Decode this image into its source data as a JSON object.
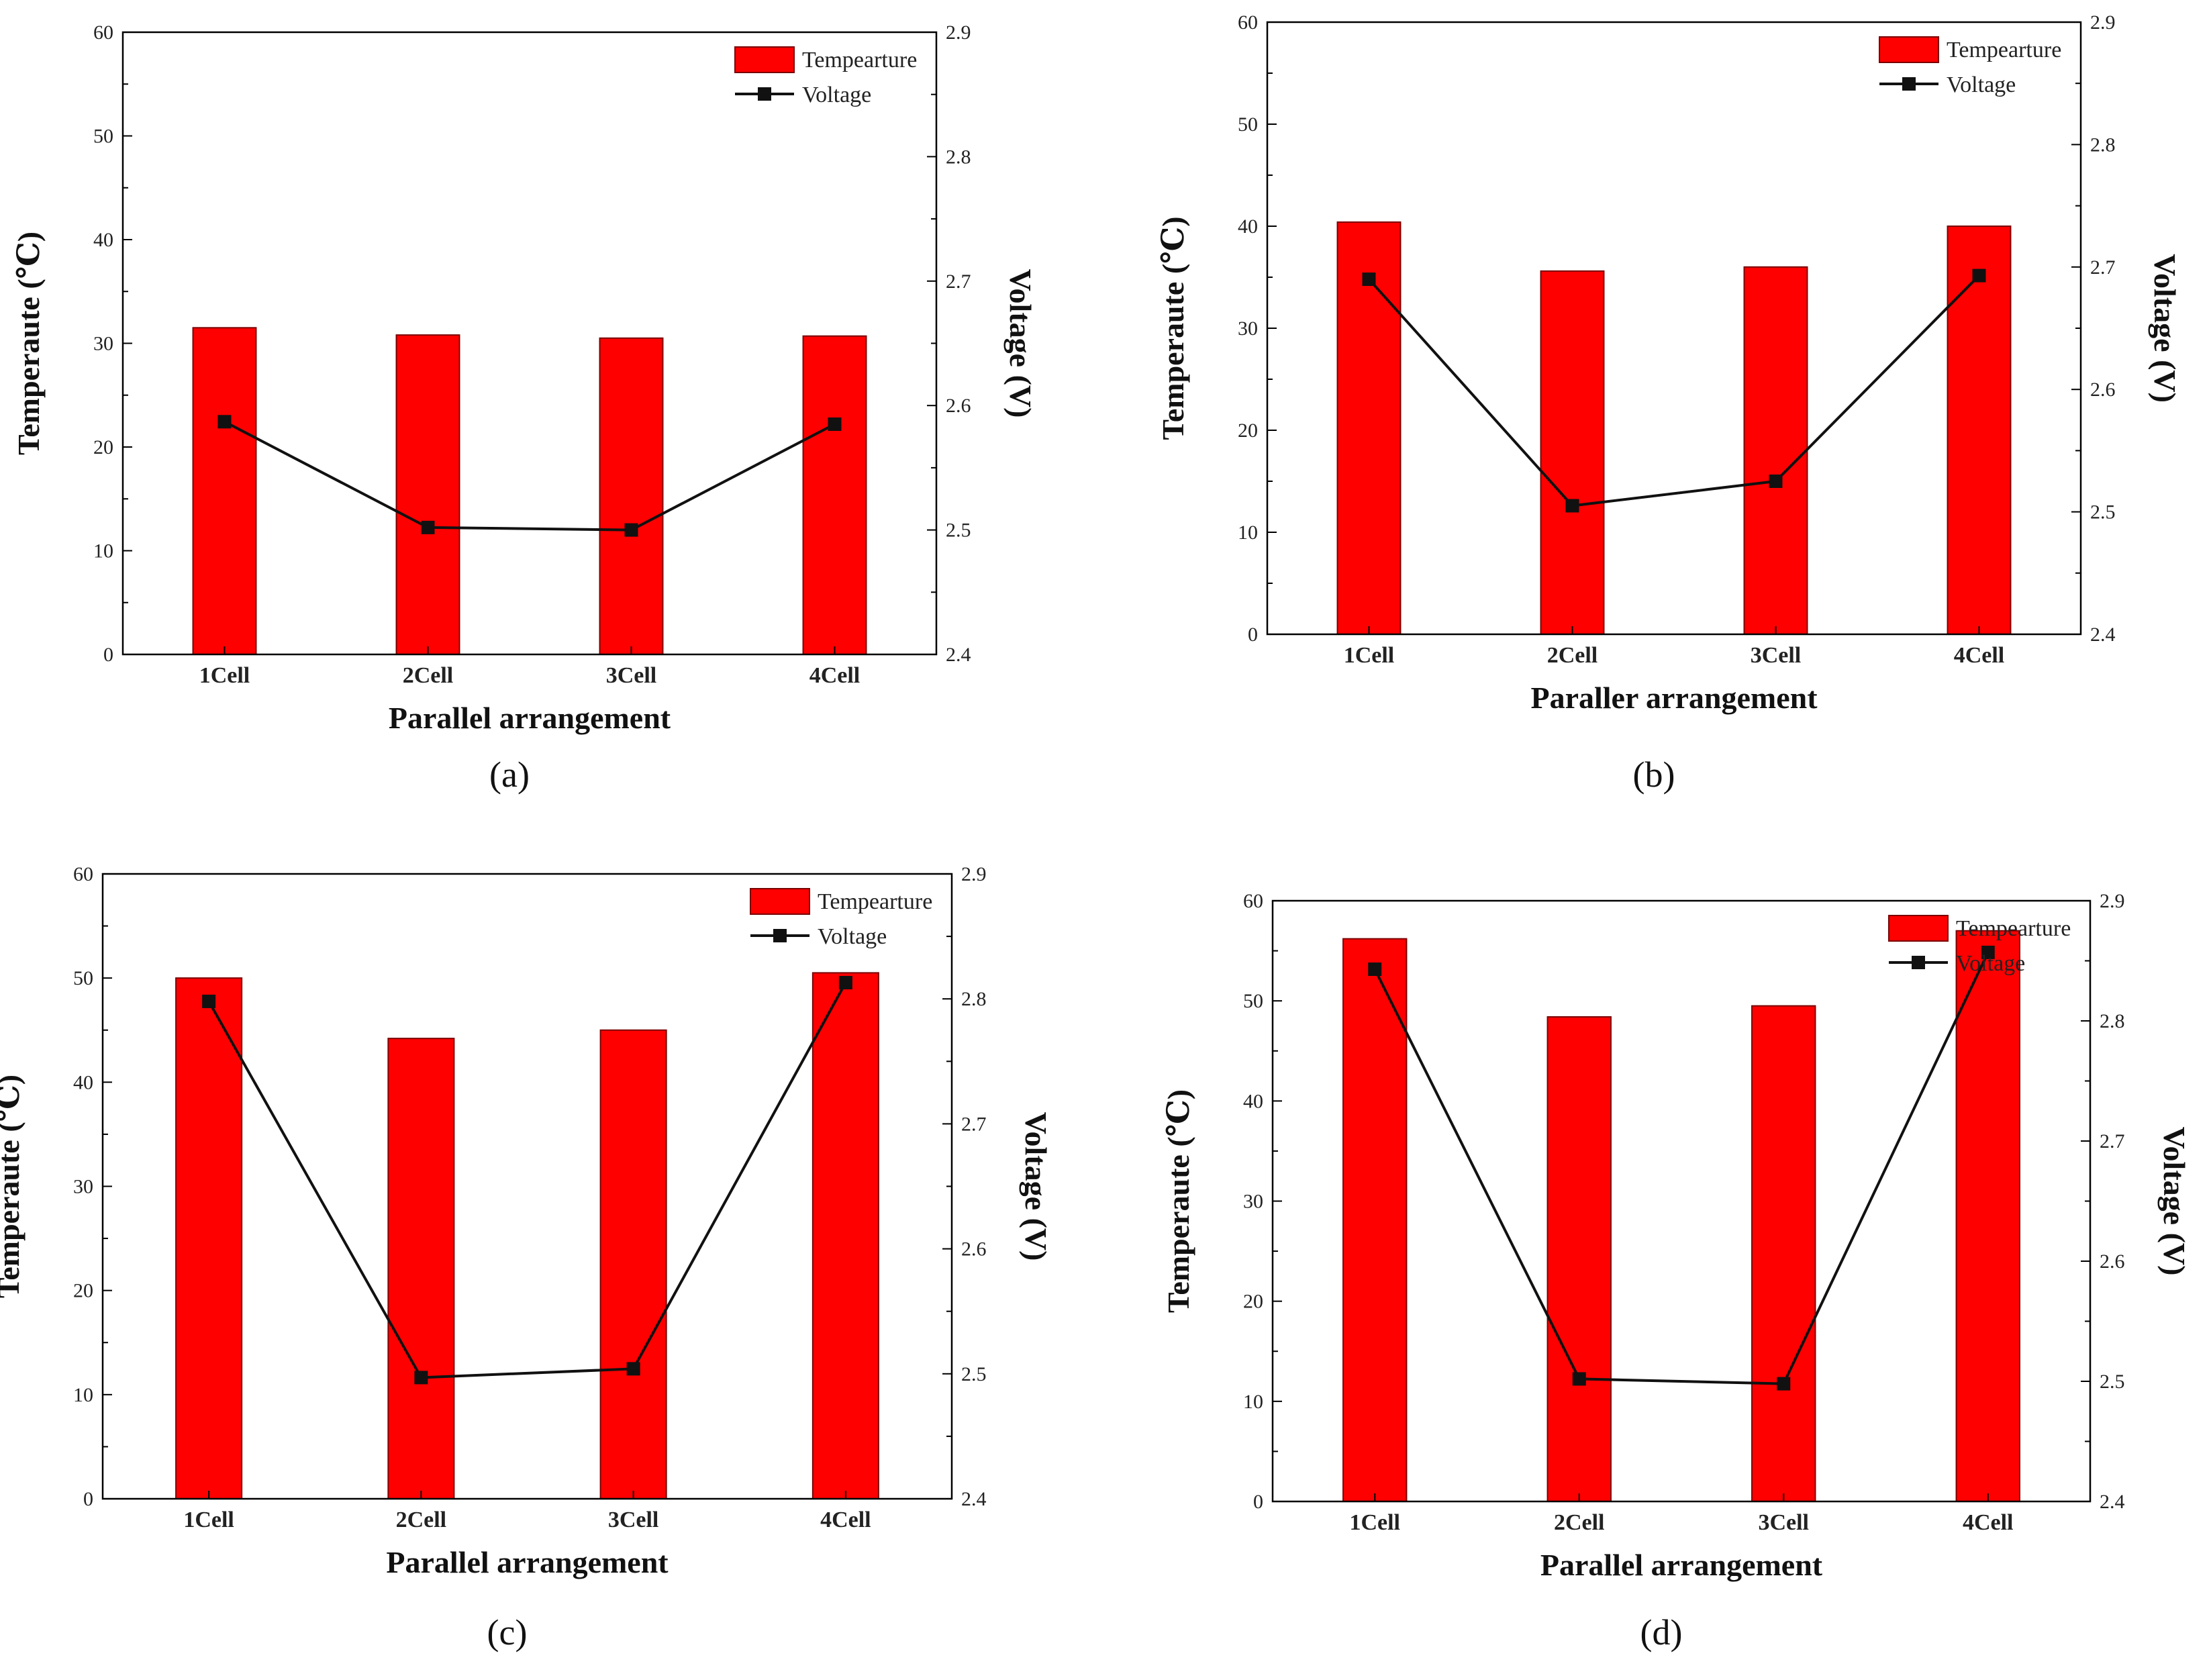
{
  "colors": {
    "bar": "#ff0000",
    "bar_stroke": "#7a0000",
    "line": "#111111",
    "axis": "#000000"
  },
  "chart_data": [
    {
      "type": "bar",
      "panel_label": "(a)",
      "categories": [
        "1Cell",
        "2Cell",
        "3Cell",
        "4Cell"
      ],
      "series": [
        {
          "name": "Tempearture",
          "type": "bar",
          "axis": "left",
          "values": [
            31.5,
            30.8,
            30.5,
            30.7
          ]
        },
        {
          "name": "Voltage",
          "type": "line",
          "axis": "right",
          "values": [
            2.587,
            2.502,
            2.5,
            2.585
          ]
        }
      ],
      "xlabel": "Parallel arrangement",
      "ylabel": "Temperaute (℃)",
      "y2label": "Voltage (V)",
      "ylim": [
        0,
        60
      ],
      "yticks": [
        0,
        10,
        20,
        30,
        40,
        50,
        60
      ],
      "y2lim": [
        2.4,
        2.9
      ],
      "y2ticks": [
        2.4,
        2.5,
        2.6,
        2.7,
        2.8,
        2.9
      ],
      "legend": "top-right"
    },
    {
      "type": "bar",
      "panel_label": "(b)",
      "categories": [
        "1Cell",
        "2Cell",
        "3Cell",
        "4Cell"
      ],
      "series": [
        {
          "name": "Tempearture",
          "type": "bar",
          "axis": "left",
          "values": [
            40.4,
            35.6,
            36.0,
            40.0
          ]
        },
        {
          "name": "Voltage",
          "type": "line",
          "axis": "right",
          "values": [
            2.69,
            2.505,
            2.525,
            2.693
          ]
        }
      ],
      "xlabel": "Paraller arrangement",
      "ylabel": "Temperaute (℃)",
      "y2label": "Voltage (V)",
      "ylim": [
        0,
        60
      ],
      "yticks": [
        0,
        10,
        20,
        30,
        40,
        50,
        60
      ],
      "y2lim": [
        2.4,
        2.9
      ],
      "y2ticks": [
        2.4,
        2.5,
        2.6,
        2.7,
        2.8,
        2.9
      ],
      "legend": "top-right"
    },
    {
      "type": "bar",
      "panel_label": "(c)",
      "categories": [
        "1Cell",
        "2Cell",
        "3Cell",
        "4Cell"
      ],
      "series": [
        {
          "name": "Tempearture",
          "type": "bar",
          "axis": "left",
          "values": [
            50.0,
            44.2,
            45.0,
            50.5
          ]
        },
        {
          "name": "Voltage",
          "type": "line",
          "axis": "right",
          "values": [
            2.798,
            2.497,
            2.504,
            2.813
          ]
        }
      ],
      "xlabel": "Parallel arrangement",
      "ylabel": "Temperaute (℃)",
      "y2label": "Voltage (V)",
      "ylim": [
        0,
        60
      ],
      "yticks": [
        0,
        10,
        20,
        30,
        40,
        50,
        60
      ],
      "y2lim": [
        2.4,
        2.9
      ],
      "y2ticks": [
        2.4,
        2.5,
        2.6,
        2.7,
        2.8,
        2.9
      ],
      "legend": "top-right"
    },
    {
      "type": "bar",
      "panel_label": "(d)",
      "categories": [
        "1Cell",
        "2Cell",
        "3Cell",
        "4Cell"
      ],
      "series": [
        {
          "name": "Tempearture",
          "type": "bar",
          "axis": "left",
          "values": [
            56.2,
            48.4,
            49.5,
            57.0
          ]
        },
        {
          "name": "Voltage",
          "type": "line",
          "axis": "right",
          "values": [
            2.843,
            2.502,
            2.498,
            2.857
          ]
        }
      ],
      "xlabel": "Parallel arrangement",
      "ylabel": "Temperaute (℃)",
      "y2label": "Voltage (V)",
      "ylim": [
        0,
        60
      ],
      "yticks": [
        0,
        10,
        20,
        30,
        40,
        50,
        60
      ],
      "y2lim": [
        2.4,
        2.9
      ],
      "y2ticks": [
        2.4,
        2.5,
        2.6,
        2.7,
        2.8,
        2.9
      ],
      "legend": "top-right"
    }
  ]
}
